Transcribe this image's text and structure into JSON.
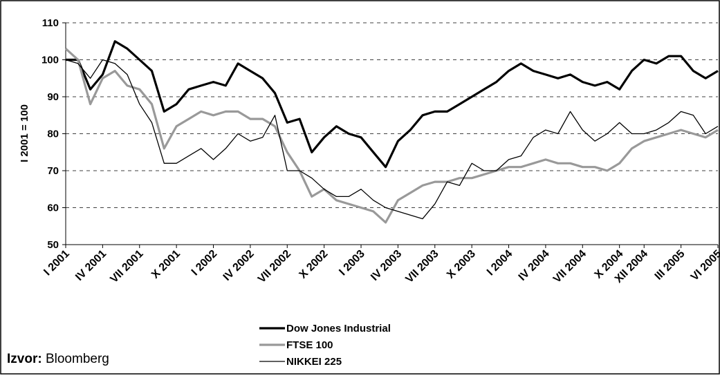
{
  "chart_data": {
    "type": "line",
    "y_label": "I 2001 = 100",
    "source_label": "Izvor:",
    "source": "Bloomberg",
    "categories": [
      "I 2001",
      null,
      null,
      "IV 2001",
      null,
      null,
      "VII 2001",
      null,
      null,
      "X 2001",
      null,
      null,
      "I 2002",
      null,
      null,
      "IV 2002",
      null,
      null,
      "VII 2002",
      null,
      null,
      "X 2002",
      null,
      null,
      "I 2003",
      null,
      null,
      "IV 2003",
      null,
      null,
      "VII 2003",
      null,
      null,
      "X 2003",
      null,
      null,
      "I 2004",
      null,
      null,
      "IV 2004",
      null,
      null,
      "VII 2004",
      null,
      null,
      "X 2004",
      null,
      "XII 2004",
      null,
      null,
      "III 2005",
      null,
      null,
      "VI 2005"
    ],
    "series": [
      {
        "name": "Dow Jones Industrial",
        "color": "#000000",
        "values": [
          100,
          100,
          92,
          96,
          105,
          103,
          100,
          97,
          86,
          88,
          92,
          93,
          94,
          93,
          99,
          97,
          95,
          91,
          83,
          84,
          75,
          79,
          82,
          80,
          79,
          75,
          71,
          78,
          81,
          85,
          86,
          86,
          88,
          90,
          92,
          94,
          97,
          99,
          97,
          96,
          95,
          96,
          94,
          93,
          94,
          92,
          97,
          100,
          99,
          101,
          101,
          97,
          95,
          97
        ]
      },
      {
        "name": "FTSE 100",
        "color": "#999999",
        "values": [
          103,
          100,
          88,
          95,
          97,
          93,
          92,
          88,
          76,
          82,
          84,
          86,
          85,
          86,
          86,
          84,
          84,
          82,
          75,
          70,
          63,
          65,
          62,
          61,
          60,
          59,
          56,
          62,
          64,
          66,
          67,
          67,
          68,
          68,
          69,
          70,
          71,
          71,
          72,
          73,
          72,
          72,
          71,
          71,
          70,
          72,
          76,
          78,
          79,
          80,
          81,
          80,
          79,
          81
        ]
      },
      {
        "name": "NIKKEI 225",
        "color": "#000000",
        "values": [
          100,
          99,
          95,
          100,
          99,
          96,
          88,
          83,
          72,
          72,
          74,
          76,
          73,
          76,
          80,
          78,
          79,
          85,
          70,
          70,
          68,
          65,
          63,
          63,
          65,
          62,
          60,
          59,
          58,
          57,
          61,
          67,
          66,
          72,
          70,
          70,
          73,
          74,
          79,
          81,
          80,
          86,
          81,
          78,
          80,
          83,
          80,
          80,
          81,
          83,
          86,
          85,
          80,
          82
        ]
      }
    ],
    "ylim": [
      50,
      110
    ],
    "yticks": [
      50,
      60,
      70,
      80,
      90,
      100,
      110
    ],
    "grid": true
  }
}
